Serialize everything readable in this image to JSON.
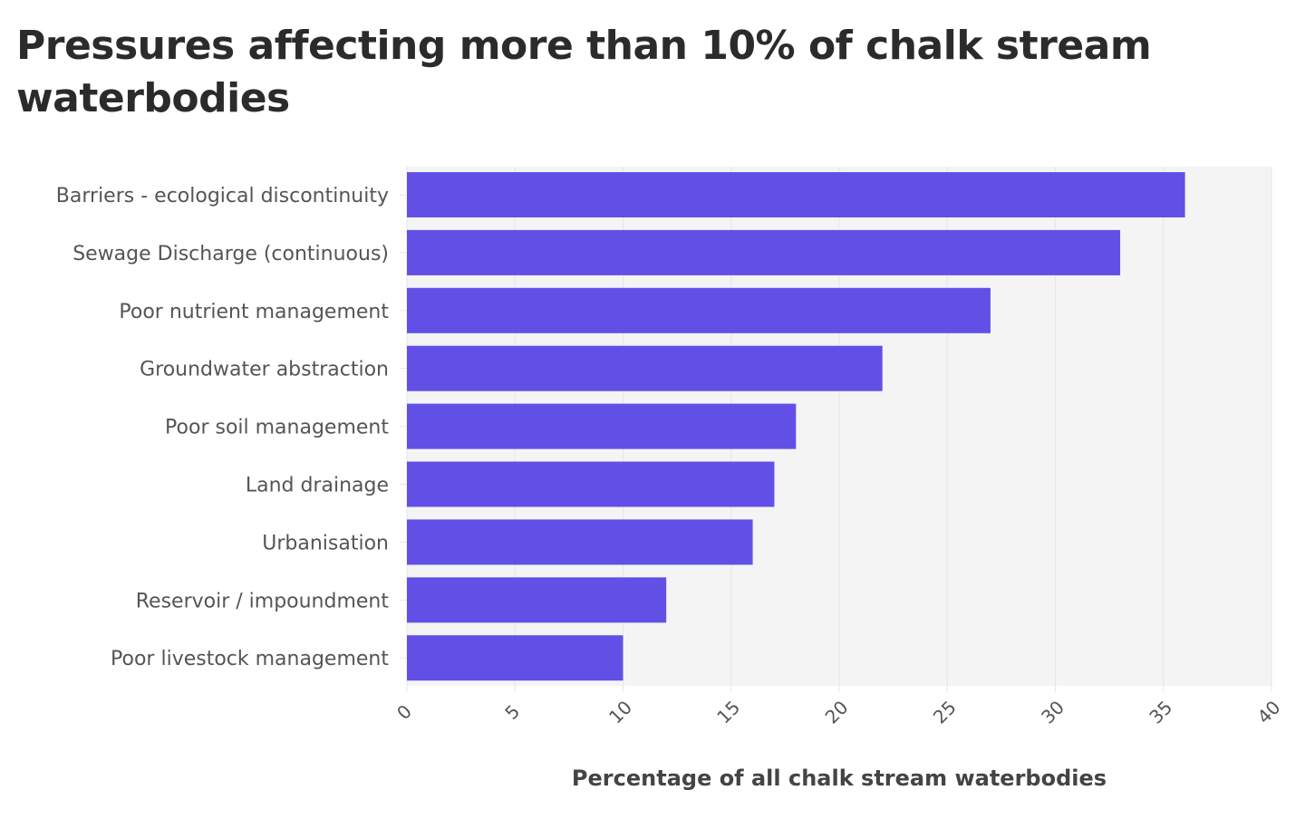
{
  "chart_data": {
    "type": "bar",
    "orientation": "horizontal",
    "title": "Pressures affecting more than 10% of chalk stream waterbodies",
    "xlabel": "Percentage of all chalk stream waterbodies",
    "ylabel": "",
    "categories": [
      "Barriers - ecological discontinuity",
      "Sewage Discharge (continuous)",
      "Poor nutrient management",
      "Groundwater abstraction",
      "Poor soil management",
      "Land drainage",
      "Urbanisation",
      "Reservoir / impoundment",
      "Poor livestock management"
    ],
    "values": [
      36,
      33,
      27,
      22,
      18,
      17,
      16,
      12,
      10
    ],
    "xlim": [
      0,
      40
    ],
    "xticks": [
      "0",
      "5",
      "10",
      "15",
      "20",
      "25",
      "30",
      "35",
      "40"
    ],
    "grid": true,
    "legend": "none",
    "colors": {
      "bar": "#6250e6",
      "plot_bg": "#f4f4f5",
      "grid": "#e6e6e8"
    }
  }
}
